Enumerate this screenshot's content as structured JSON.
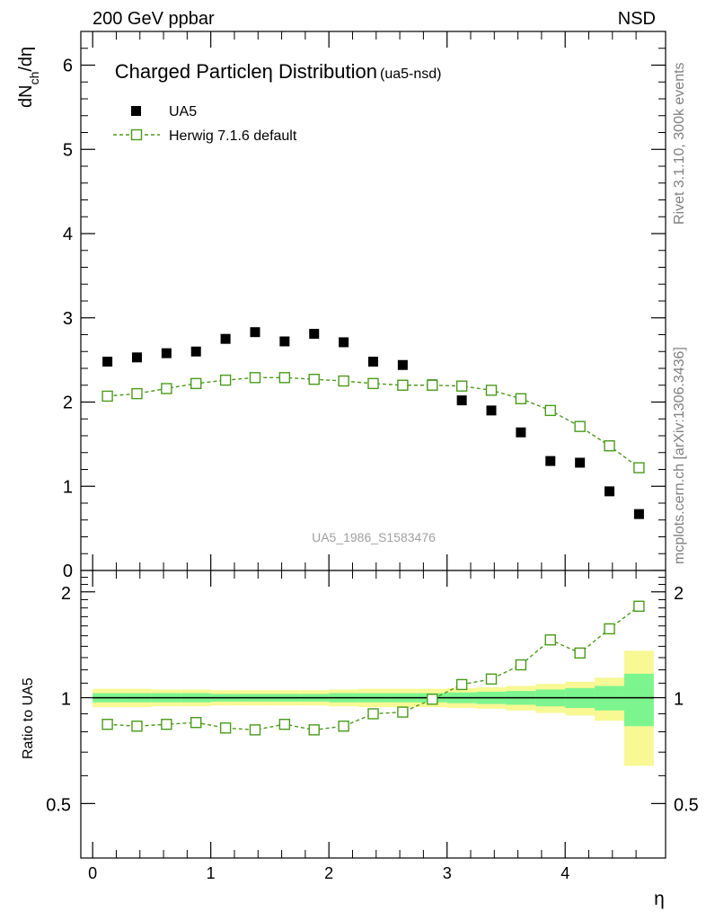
{
  "header": {
    "left": "200 GeV ppbar",
    "right": "NSD"
  },
  "side_labels": {
    "rivet": "Rivet 3.1.10,  300k events",
    "mcplots": "mcplots.cern.ch [arXiv:1306.3436]"
  },
  "chart_data": {
    "type": "scatter",
    "title_main": "Charged Particleη Distribution",
    "title_sub": "(ua5-nsd)",
    "ylabel": "dN_ch/dη",
    "ratio_ylabel": "Ratio to UA5",
    "xlabel": "η",
    "watermark": "UA5_1986_S1583476",
    "xlim": [
      -0.1,
      4.85
    ],
    "ylim": [
      0,
      6.4
    ],
    "ratio_ylim": [
      0.35,
      2.3
    ],
    "x_ticks": [
      0,
      1,
      2,
      3,
      4
    ],
    "x_tick_labels": [
      "0",
      "1",
      "2",
      "3",
      "4"
    ],
    "y_ticks": [
      0,
      1,
      2,
      3,
      4,
      5,
      6
    ],
    "y_tick_labels": [
      "0",
      "1",
      "2",
      "3",
      "4",
      "5",
      "6"
    ],
    "ratio_ticks": [
      0.5,
      1,
      2
    ],
    "ratio_tick_labels": [
      "0.5",
      "1",
      "2"
    ],
    "bin_edges": [
      0,
      0.25,
      0.5,
      0.75,
      1.0,
      1.25,
      1.5,
      1.75,
      2.0,
      2.25,
      2.5,
      2.75,
      3.0,
      3.25,
      3.5,
      3.75,
      4.0,
      4.25,
      4.5,
      4.75
    ],
    "x": [
      0.125,
      0.375,
      0.625,
      0.875,
      1.125,
      1.375,
      1.625,
      1.875,
      2.125,
      2.375,
      2.625,
      2.875,
      3.125,
      3.375,
      3.625,
      3.875,
      4.125,
      4.375,
      4.625
    ],
    "series": [
      {
        "name": "UA5",
        "marker": "filled-square",
        "color": "#000000",
        "values": [
          2.48,
          2.53,
          2.58,
          2.6,
          2.75,
          2.83,
          2.72,
          2.81,
          2.71,
          2.48,
          2.44,
          2.21,
          2.02,
          1.9,
          1.64,
          1.3,
          1.28,
          0.94,
          0.67
        ]
      },
      {
        "name": "Herwig 7.1.6 default",
        "marker": "open-square-dashed",
        "color": "#4a9a1a",
        "values": [
          2.07,
          2.1,
          2.16,
          2.22,
          2.26,
          2.29,
          2.29,
          2.27,
          2.25,
          2.22,
          2.2,
          2.2,
          2.19,
          2.14,
          2.04,
          1.9,
          1.71,
          1.48,
          1.22
        ]
      }
    ],
    "ratio": {
      "reference_line": 1,
      "values": [
        0.84,
        0.83,
        0.84,
        0.85,
        0.82,
        0.81,
        0.84,
        0.81,
        0.83,
        0.9,
        0.91,
        0.99,
        1.09,
        1.13,
        1.24,
        1.46,
        1.34,
        1.57,
        1.82
      ],
      "band_inner_halfwidth": [
        0.03,
        0.03,
        0.03,
        0.03,
        0.025,
        0.025,
        0.025,
        0.025,
        0.03,
        0.03,
        0.03,
        0.03,
        0.035,
        0.04,
        0.045,
        0.055,
        0.065,
        0.08,
        0.17
      ],
      "band_outer_halfwidth": [
        0.06,
        0.06,
        0.055,
        0.055,
        0.05,
        0.05,
        0.05,
        0.05,
        0.055,
        0.06,
        0.06,
        0.06,
        0.065,
        0.07,
        0.08,
        0.095,
        0.11,
        0.14,
        0.36
      ]
    },
    "colors": {
      "band_inner": "#7cf58f",
      "band_outer": "#f8f894",
      "axis": "#000000",
      "side_text": "#808080"
    }
  }
}
